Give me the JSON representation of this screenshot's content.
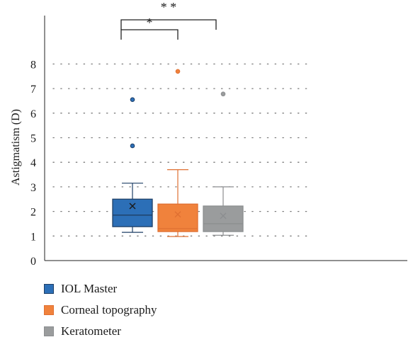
{
  "chart_data": {
    "type": "box",
    "ylabel": "Astigmatism (D)",
    "ylim": [
      0,
      9
    ],
    "yticks": [
      0,
      1,
      2,
      3,
      4,
      5,
      6,
      7,
      8
    ],
    "grid": "dotted horizontal",
    "legend_position": "bottom-left",
    "series": [
      {
        "name": "IOL Master",
        "color": "#2c6fb7",
        "stroke": "#1f3f66",
        "min": 1.15,
        "q1": 1.38,
        "median": 1.85,
        "q3": 2.5,
        "max": 3.15,
        "mean": 2.22,
        "outliers": [
          4.67,
          6.55
        ]
      },
      {
        "name": "Corneal topography",
        "color": "#f0823c",
        "stroke": "#e07032",
        "min": 0.98,
        "q1": 1.18,
        "median": 1.3,
        "q3": 2.3,
        "max": 3.7,
        "mean": 1.88,
        "outliers": [
          7.7
        ]
      },
      {
        "name": "Keratometer",
        "color": "#9a9c9d",
        "stroke": "#8c8e90",
        "min": 1.03,
        "q1": 1.18,
        "median": 1.5,
        "q3": 2.22,
        "max": 3.0,
        "mean": 1.82,
        "outliers": [
          6.78
        ]
      }
    ],
    "significance": [
      {
        "from": 0,
        "to": 1,
        "label": "*"
      },
      {
        "from": 0,
        "to": 2,
        "label": "* *"
      }
    ]
  }
}
